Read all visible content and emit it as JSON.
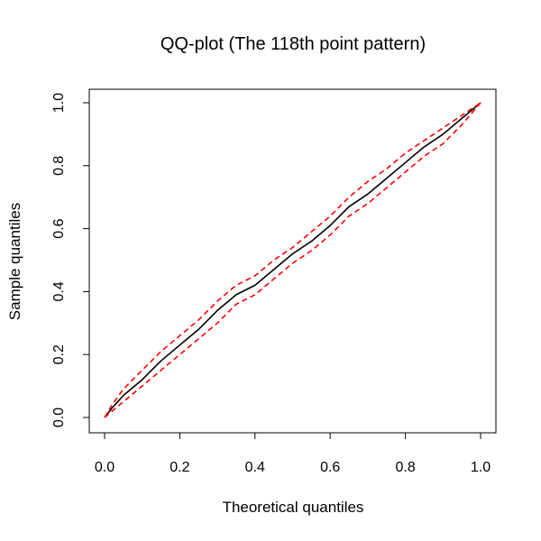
{
  "chart_data": {
    "type": "line",
    "title": "QQ-plot (The 118th point pattern)",
    "xlabel": "Theoretical quantiles",
    "ylabel": "Sample quantiles",
    "xlim": [
      0,
      1
    ],
    "ylim": [
      0,
      1
    ],
    "xticks": [
      "0.0",
      "0.2",
      "0.4",
      "0.6",
      "0.8",
      "1.0"
    ],
    "yticks": [
      "0.0",
      "0.2",
      "0.4",
      "0.6",
      "0.8",
      "1.0"
    ],
    "grid": false,
    "legend": "none",
    "series": [
      {
        "color": "#000000",
        "style": "solid",
        "x": [
          0.0,
          0.02,
          0.05,
          0.1,
          0.15,
          0.2,
          0.25,
          0.3,
          0.35,
          0.4,
          0.45,
          0.5,
          0.55,
          0.6,
          0.65,
          0.7,
          0.75,
          0.8,
          0.85,
          0.9,
          0.95,
          1.0
        ],
        "y": [
          0.0,
          0.03,
          0.07,
          0.12,
          0.18,
          0.23,
          0.28,
          0.34,
          0.39,
          0.42,
          0.47,
          0.52,
          0.56,
          0.61,
          0.67,
          0.71,
          0.76,
          0.81,
          0.86,
          0.9,
          0.95,
          1.0
        ]
      },
      {
        "color": "#ff0000",
        "style": "dashed",
        "x": [
          0.0,
          0.02,
          0.05,
          0.1,
          0.15,
          0.2,
          0.25,
          0.3,
          0.35,
          0.4,
          0.45,
          0.5,
          0.55,
          0.6,
          0.65,
          0.7,
          0.75,
          0.8,
          0.85,
          0.9,
          0.95,
          1.0
        ],
        "y": [
          0.0,
          0.04,
          0.09,
          0.15,
          0.21,
          0.26,
          0.31,
          0.37,
          0.42,
          0.45,
          0.5,
          0.54,
          0.59,
          0.64,
          0.7,
          0.75,
          0.79,
          0.84,
          0.88,
          0.92,
          0.96,
          1.0
        ]
      },
      {
        "color": "#ff0000",
        "style": "dashed",
        "x": [
          0.0,
          0.02,
          0.05,
          0.1,
          0.15,
          0.2,
          0.25,
          0.3,
          0.35,
          0.4,
          0.45,
          0.5,
          0.55,
          0.6,
          0.65,
          0.7,
          0.75,
          0.8,
          0.85,
          0.9,
          0.95,
          1.0
        ],
        "y": [
          0.0,
          0.02,
          0.05,
          0.1,
          0.15,
          0.2,
          0.25,
          0.3,
          0.36,
          0.39,
          0.44,
          0.49,
          0.53,
          0.58,
          0.64,
          0.68,
          0.73,
          0.78,
          0.83,
          0.87,
          0.93,
          1.0
        ]
      }
    ]
  }
}
